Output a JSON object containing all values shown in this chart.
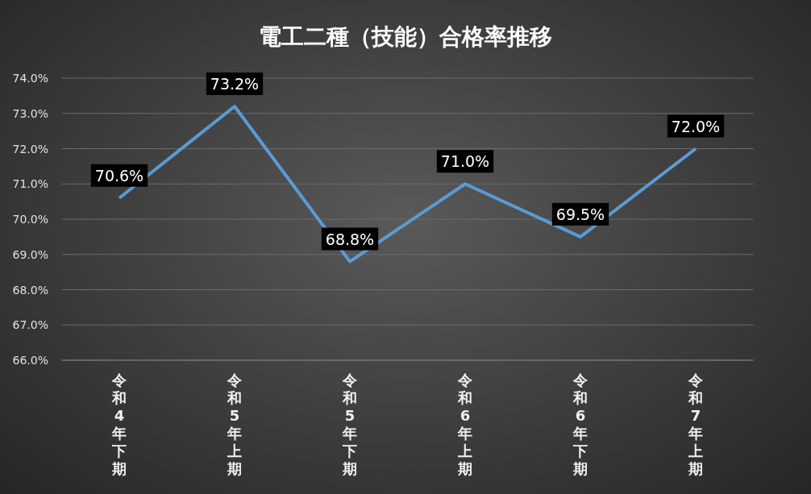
{
  "chart_data": {
    "type": "line",
    "title": "電工二種（技能）合格率推移",
    "categories": [
      "令和4年下期",
      "令和5年上期",
      "令和5年下期",
      "令和6年上期",
      "令和6年下期",
      "令和7年上期"
    ],
    "series": [
      {
        "color": "#5b9bd5",
        "values": [
          70.6,
          73.2,
          68.8,
          71.0,
          69.5,
          72.0
        ],
        "value_labels": [
          "70.6%",
          "73.2%",
          "68.8%",
          "71.0%",
          "69.5%",
          "72.0%"
        ]
      }
    ],
    "ylim": [
      66,
      74
    ],
    "yticks": [
      {
        "value": 66,
        "label": "66.0%"
      },
      {
        "value": 67,
        "label": "67.0%"
      },
      {
        "value": 68,
        "label": "68.0%"
      },
      {
        "value": 69,
        "label": "69.0%"
      },
      {
        "value": 70,
        "label": "70.0%"
      },
      {
        "value": 71,
        "label": "71.0%"
      },
      {
        "value": 72,
        "label": "72.0%"
      },
      {
        "value": 73,
        "label": "73.0%"
      },
      {
        "value": 74,
        "label": "74.0%"
      }
    ],
    "grid": "y",
    "marker": "none",
    "line_style": "solid"
  }
}
